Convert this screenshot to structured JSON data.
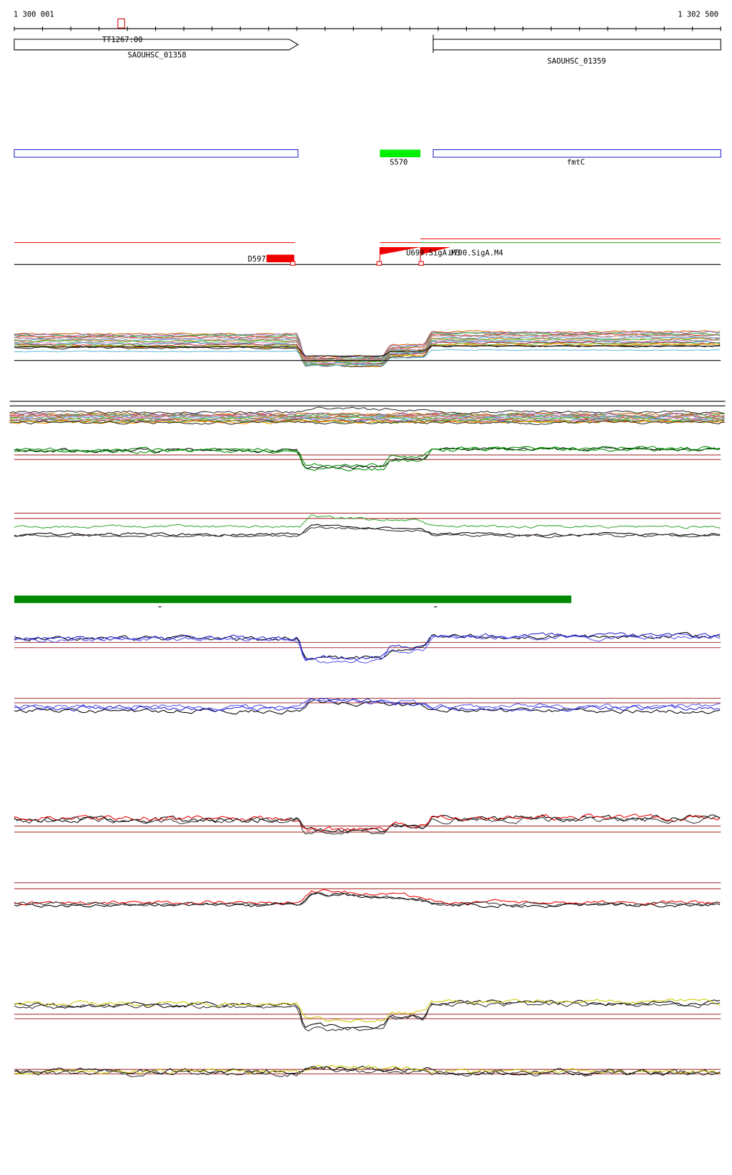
{
  "ruler": {
    "start": "1 300 001",
    "end": "1 302 500"
  },
  "features": {
    "marker": "TT1267:00",
    "gene_left": "SAOUHSC_01358",
    "gene_right": "SAOUHSC_01359",
    "srna": "S570",
    "cds_right": "fmtC",
    "tss_down": "D597",
    "tss_up_1": "U699.SigA.M3",
    "tss_up_2": "U700.SigA.M4"
  }
}
